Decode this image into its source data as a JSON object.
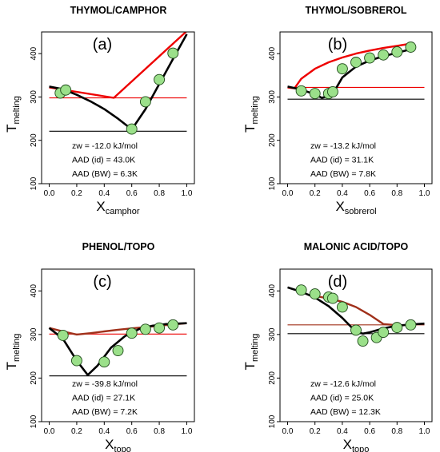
{
  "chart_data": [
    {
      "type": "scatter",
      "title": "THYMOL/CAMPHOR",
      "panel_label": "(a)",
      "xlabel": "X",
      "xlabel_sub": "camphor",
      "ylabel": "T",
      "ylabel_sub": "melting",
      "xlim": [
        0,
        1
      ],
      "ylim": [
        100,
        450
      ],
      "x_ticks": [
        "0.0",
        "0.2",
        "0.4",
        "0.6",
        "0.8",
        "1.0"
      ],
      "y_ticks": [
        "100",
        "200",
        "300",
        "400"
      ],
      "grid": false,
      "annotations": [
        "zw = -12.0 kJ/mol",
        "AAD (id)  = 43.0K",
        "AAD (BW)  = 6.3K"
      ],
      "series": [
        {
          "kind": "points",
          "x": [
            0.08,
            0.12,
            0.6,
            0.7,
            0.8,
            0.9
          ],
          "y": [
            309,
            316,
            226,
            289,
            340,
            401
          ]
        },
        {
          "kind": "ideal",
          "x": [
            0.0,
            0.47,
            1.0
          ],
          "y": [
            322,
            298,
            452
          ]
        },
        {
          "kind": "fit",
          "x": [
            0.0,
            0.1,
            0.2,
            0.3,
            0.4,
            0.5,
            0.58,
            0.6,
            0.7,
            0.8,
            0.9,
            1.0
          ],
          "y": [
            324,
            318,
            305,
            290,
            272,
            250,
            230,
            225,
            272,
            330,
            388,
            445
          ]
        },
        {
          "kind": "hline",
          "color": "red",
          "y": 298
        },
        {
          "kind": "hline",
          "color": "black",
          "y": 221
        }
      ]
    },
    {
      "type": "scatter",
      "title": "THYMOL/SOBREROL",
      "panel_label": "(b)",
      "xlabel": "X",
      "xlabel_sub": "sobrerol",
      "ylabel": "T",
      "ylabel_sub": "melting",
      "xlim": [
        0,
        1
      ],
      "ylim": [
        100,
        450
      ],
      "x_ticks": [
        "0.0",
        "0.2",
        "0.4",
        "0.6",
        "0.8",
        "1.0"
      ],
      "y_ticks": [
        "100",
        "200",
        "300",
        "400"
      ],
      "grid": false,
      "annotations": [
        "zw = -13.2 kJ/mol",
        "AAD (id)  = 31.1K",
        "AAD (BW)  = 7.8K"
      ],
      "series": [
        {
          "kind": "points",
          "x": [
            0.1,
            0.2,
            0.3,
            0.33,
            0.4,
            0.5,
            0.6,
            0.7,
            0.8,
            0.9
          ],
          "y": [
            314,
            308,
            308,
            312,
            365,
            380,
            390,
            397,
            404,
            415
          ]
        },
        {
          "kind": "ideal",
          "x": [
            0.0,
            0.05,
            0.1,
            0.2,
            0.3,
            0.4,
            0.5,
            0.6,
            0.7,
            0.8,
            0.9
          ],
          "y": [
            322,
            320,
            342,
            365,
            380,
            391,
            400,
            407,
            413,
            418,
            423
          ]
        },
        {
          "kind": "fit",
          "x": [
            0.0,
            0.1,
            0.2,
            0.25,
            0.3,
            0.35,
            0.4,
            0.5,
            0.6,
            0.7,
            0.8,
            0.9
          ],
          "y": [
            324,
            317,
            306,
            298,
            302,
            318,
            345,
            370,
            384,
            394,
            402,
            410
          ]
        },
        {
          "kind": "hline",
          "color": "red",
          "y": 322
        },
        {
          "kind": "hline",
          "color": "black",
          "y": 295
        }
      ]
    },
    {
      "type": "scatter",
      "title": "PHENOL/TOPO",
      "panel_label": "(c)",
      "xlabel": "X",
      "xlabel_sub": "topo",
      "ylabel": "T",
      "ylabel_sub": "melting",
      "xlim": [
        0,
        1
      ],
      "ylim": [
        100,
        450
      ],
      "x_ticks": [
        "0.0",
        "0.2",
        "0.4",
        "0.6",
        "0.8",
        "1.0"
      ],
      "y_ticks": [
        "100",
        "200",
        "300",
        "400"
      ],
      "grid": false,
      "annotations": [
        "zw = -39.8 kJ/mol",
        "AAD (id)  = 27.1K",
        "AAD (BW)  = 7.2K"
      ],
      "series": [
        {
          "kind": "points",
          "x": [
            0.1,
            0.2,
            0.4,
            0.5,
            0.6,
            0.7,
            0.8,
            0.9
          ],
          "y": [
            298,
            240,
            237,
            263,
            303,
            312,
            315,
            322
          ]
        },
        {
          "kind": "ideal",
          "x": [
            0.0,
            0.1,
            0.2,
            0.3,
            0.4,
            0.5,
            0.6,
            0.7,
            0.8,
            0.9,
            1.0
          ],
          "y": [
            315,
            307,
            300,
            303,
            307,
            311,
            314,
            317,
            320,
            323,
            326
          ]
        },
        {
          "kind": "fit",
          "x": [
            0.0,
            0.1,
            0.2,
            0.28,
            0.35,
            0.45,
            0.55,
            0.65,
            0.75,
            0.85,
            1.0
          ],
          "y": [
            315,
            290,
            240,
            207,
            228,
            270,
            296,
            312,
            320,
            324,
            326
          ]
        },
        {
          "kind": "hline",
          "color": "red",
          "y": 301
        },
        {
          "kind": "hline",
          "color": "black",
          "y": 205
        }
      ]
    },
    {
      "type": "scatter",
      "title": "MALONIC ACID/TOPO",
      "panel_label": "(d)",
      "xlabel": "X",
      "xlabel_sub": "topo",
      "ylabel": "T",
      "ylabel_sub": "melting",
      "xlim": [
        0,
        1
      ],
      "ylim": [
        100,
        450
      ],
      "x_ticks": [
        "0.0",
        "0.2",
        "0.4",
        "0.6",
        "0.8",
        "1.0"
      ],
      "y_ticks": [
        "100",
        "200",
        "300",
        "400"
      ],
      "grid": false,
      "annotations": [
        "zw = -12.6 kJ/mol",
        "AAD (id)  = 25.0K",
        "AAD (BW)  = 12.3K"
      ],
      "series": [
        {
          "kind": "points",
          "x": [
            0.1,
            0.2,
            0.3,
            0.33,
            0.4,
            0.5,
            0.55,
            0.65,
            0.7,
            0.8,
            0.9
          ],
          "y": [
            402,
            393,
            386,
            383,
            363,
            310,
            285,
            293,
            305,
            316,
            322
          ]
        },
        {
          "kind": "ideal",
          "x": [
            0.2,
            0.3,
            0.4,
            0.5,
            0.6,
            0.7,
            0.78
          ],
          "y": [
            388,
            383,
            375,
            363,
            345,
            324,
            322
          ]
        },
        {
          "kind": "fit",
          "x": [
            0.0,
            0.1,
            0.2,
            0.3,
            0.4,
            0.5,
            0.55,
            0.6,
            0.7,
            0.8,
            0.9,
            1.0
          ],
          "y": [
            408,
            398,
            385,
            365,
            338,
            306,
            302,
            305,
            314,
            320,
            323,
            325
          ]
        },
        {
          "kind": "hline",
          "color": "darkred",
          "y": 322
        },
        {
          "kind": "hline",
          "color": "black",
          "y": 302
        }
      ]
    }
  ]
}
